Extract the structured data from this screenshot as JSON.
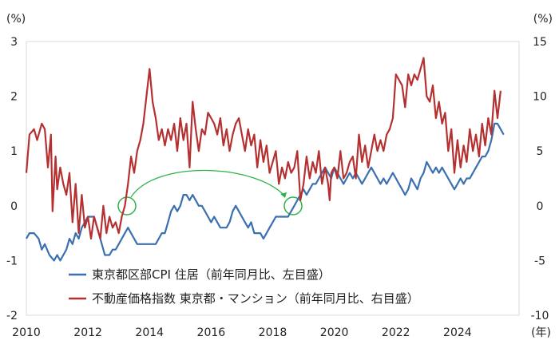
{
  "chart_data": {
    "type": "line",
    "left_unit": "(%)",
    "right_unit": "(%)",
    "x_unit": "(年)",
    "x_ticks": [
      "2010",
      "2012",
      "2014",
      "2016",
      "2018",
      "2020",
      "2022",
      "2024"
    ],
    "x_range": [
      2010,
      2026
    ],
    "left_ticks": [
      "3",
      "2",
      "1",
      "0",
      "-1",
      "-2"
    ],
    "right_ticks": [
      "15",
      "10",
      "5",
      "0",
      "-5",
      "-10"
    ],
    "left_range": [
      -2,
      3
    ],
    "right_range": [
      -10,
      15
    ],
    "grid": false,
    "legend_position": "bottom-left",
    "series": [
      {
        "name": "東京都区部CPI 住居（前年同月比、左目盛）",
        "axis": "left",
        "color": "#3a6fb0",
        "points": [
          [
            2010.0,
            -0.6
          ],
          [
            2010.1,
            -0.5
          ],
          [
            2010.25,
            -0.5
          ],
          [
            2010.4,
            -0.6
          ],
          [
            2010.5,
            -0.8
          ],
          [
            2010.6,
            -0.7
          ],
          [
            2010.75,
            -0.9
          ],
          [
            2010.9,
            -1.0
          ],
          [
            2011.0,
            -0.9
          ],
          [
            2011.1,
            -1.0
          ],
          [
            2011.2,
            -0.9
          ],
          [
            2011.3,
            -0.8
          ],
          [
            2011.4,
            -0.6
          ],
          [
            2011.5,
            -0.7
          ],
          [
            2011.6,
            -0.5
          ],
          [
            2011.7,
            -0.6
          ],
          [
            2011.8,
            -0.4
          ],
          [
            2011.9,
            -0.3
          ],
          [
            2012.0,
            -0.2
          ],
          [
            2012.1,
            -0.2
          ],
          [
            2012.2,
            -0.2
          ],
          [
            2012.3,
            -0.4
          ],
          [
            2012.45,
            -0.7
          ],
          [
            2012.55,
            -0.9
          ],
          [
            2012.7,
            -0.9
          ],
          [
            2012.8,
            -0.8
          ],
          [
            2012.9,
            -0.8
          ],
          [
            2013.0,
            -0.7
          ],
          [
            2013.1,
            -0.6
          ],
          [
            2013.2,
            -0.5
          ],
          [
            2013.3,
            -0.4
          ],
          [
            2013.4,
            -0.5
          ],
          [
            2013.5,
            -0.6
          ],
          [
            2013.6,
            -0.7
          ],
          [
            2013.8,
            -0.7
          ],
          [
            2014.0,
            -0.7
          ],
          [
            2014.2,
            -0.7
          ],
          [
            2014.3,
            -0.6
          ],
          [
            2014.4,
            -0.5
          ],
          [
            2014.5,
            -0.5
          ],
          [
            2014.6,
            -0.3
          ],
          [
            2014.7,
            -0.1
          ],
          [
            2014.8,
            0.0
          ],
          [
            2014.9,
            -0.1
          ],
          [
            2015.0,
            0.0
          ],
          [
            2015.1,
            0.2
          ],
          [
            2015.2,
            0.2
          ],
          [
            2015.3,
            0.1
          ],
          [
            2015.4,
            0.2
          ],
          [
            2015.5,
            0.1
          ],
          [
            2015.6,
            0.0
          ],
          [
            2015.7,
            0.0
          ],
          [
            2015.8,
            -0.1
          ],
          [
            2015.9,
            -0.2
          ],
          [
            2016.0,
            -0.3
          ],
          [
            2016.1,
            -0.2
          ],
          [
            2016.2,
            -0.3
          ],
          [
            2016.3,
            -0.4
          ],
          [
            2016.4,
            -0.4
          ],
          [
            2016.5,
            -0.4
          ],
          [
            2016.6,
            -0.3
          ],
          [
            2016.7,
            -0.1
          ],
          [
            2016.8,
            0.0
          ],
          [
            2016.9,
            -0.1
          ],
          [
            2017.0,
            -0.2
          ],
          [
            2017.1,
            -0.3
          ],
          [
            2017.2,
            -0.4
          ],
          [
            2017.3,
            -0.3
          ],
          [
            2017.4,
            -0.5
          ],
          [
            2017.6,
            -0.5
          ],
          [
            2017.7,
            -0.6
          ],
          [
            2017.8,
            -0.5
          ],
          [
            2017.9,
            -0.4
          ],
          [
            2018.0,
            -0.3
          ],
          [
            2018.1,
            -0.2
          ],
          [
            2018.3,
            -0.2
          ],
          [
            2018.5,
            -0.2
          ],
          [
            2018.6,
            -0.1
          ],
          [
            2018.7,
            0.0
          ],
          [
            2018.8,
            0.1
          ],
          [
            2018.9,
            0.2
          ],
          [
            2019.0,
            0.3
          ],
          [
            2019.1,
            0.2
          ],
          [
            2019.2,
            0.3
          ],
          [
            2019.3,
            0.4
          ],
          [
            2019.4,
            0.4
          ],
          [
            2019.5,
            0.5
          ],
          [
            2019.6,
            0.6
          ],
          [
            2019.7,
            0.7
          ],
          [
            2019.8,
            0.6
          ],
          [
            2019.9,
            0.5
          ],
          [
            2020.0,
            0.7
          ],
          [
            2020.1,
            0.6
          ],
          [
            2020.2,
            0.5
          ],
          [
            2020.3,
            0.4
          ],
          [
            2020.4,
            0.5
          ],
          [
            2020.5,
            0.6
          ],
          [
            2020.6,
            0.5
          ],
          [
            2020.7,
            0.6
          ],
          [
            2020.8,
            0.5
          ],
          [
            2020.9,
            0.4
          ],
          [
            2021.0,
            0.5
          ],
          [
            2021.1,
            0.6
          ],
          [
            2021.2,
            0.7
          ],
          [
            2021.3,
            0.6
          ],
          [
            2021.4,
            0.5
          ],
          [
            2021.5,
            0.4
          ],
          [
            2021.6,
            0.5
          ],
          [
            2021.7,
            0.4
          ],
          [
            2021.8,
            0.5
          ],
          [
            2021.9,
            0.6
          ],
          [
            2022.0,
            0.5
          ],
          [
            2022.1,
            0.4
          ],
          [
            2022.2,
            0.3
          ],
          [
            2022.3,
            0.2
          ],
          [
            2022.4,
            0.3
          ],
          [
            2022.5,
            0.5
          ],
          [
            2022.6,
            0.4
          ],
          [
            2022.7,
            0.3
          ],
          [
            2022.8,
            0.5
          ],
          [
            2022.9,
            0.6
          ],
          [
            2023.0,
            0.8
          ],
          [
            2023.1,
            0.7
          ],
          [
            2023.2,
            0.6
          ],
          [
            2023.3,
            0.7
          ],
          [
            2023.4,
            0.6
          ],
          [
            2023.5,
            0.7
          ],
          [
            2023.6,
            0.6
          ],
          [
            2023.7,
            0.5
          ],
          [
            2023.8,
            0.4
          ],
          [
            2023.9,
            0.3
          ],
          [
            2024.0,
            0.4
          ],
          [
            2024.1,
            0.5
          ],
          [
            2024.2,
            0.4
          ],
          [
            2024.3,
            0.5
          ],
          [
            2024.4,
            0.5
          ],
          [
            2024.5,
            0.6
          ],
          [
            2024.6,
            0.7
          ],
          [
            2024.7,
            0.8
          ],
          [
            2024.8,
            0.9
          ],
          [
            2024.9,
            0.9
          ],
          [
            2025.0,
            1.0
          ],
          [
            2025.1,
            1.2
          ],
          [
            2025.2,
            1.5
          ],
          [
            2025.3,
            1.5
          ],
          [
            2025.4,
            1.4
          ],
          [
            2025.5,
            1.3
          ]
        ]
      },
      {
        "name": "不動産価格指数 東京都・マンション（前年同月比、右目盛）",
        "axis": "right",
        "color": "#b53031",
        "points": [
          [
            2010.0,
            3.0
          ],
          [
            2010.1,
            6.5
          ],
          [
            2010.25,
            7.0
          ],
          [
            2010.35,
            6.0
          ],
          [
            2010.5,
            7.5
          ],
          [
            2010.6,
            7.0
          ],
          [
            2010.7,
            3.5
          ],
          [
            2010.8,
            6.5
          ],
          [
            2010.85,
            -0.5
          ],
          [
            2010.95,
            4.5
          ],
          [
            2011.0,
            1.5
          ],
          [
            2011.1,
            3.5
          ],
          [
            2011.2,
            2.0
          ],
          [
            2011.3,
            1.0
          ],
          [
            2011.4,
            3.0
          ],
          [
            2011.5,
            -1.5
          ],
          [
            2011.6,
            2.0
          ],
          [
            2011.7,
            -2.5
          ],
          [
            2011.8,
            1.0
          ],
          [
            2011.9,
            -2.0
          ],
          [
            2012.0,
            -1.0
          ],
          [
            2012.1,
            -3.0
          ],
          [
            2012.2,
            -1.0
          ],
          [
            2012.3,
            -2.0
          ],
          [
            2012.4,
            -3.0
          ],
          [
            2012.5,
            0.0
          ],
          [
            2012.6,
            -2.5
          ],
          [
            2012.7,
            -1.0
          ],
          [
            2012.8,
            -2.0
          ],
          [
            2012.9,
            -1.5
          ],
          [
            2013.0,
            -2.5
          ],
          [
            2013.1,
            -1.0
          ],
          [
            2013.2,
            0.0
          ],
          [
            2013.3,
            2.0
          ],
          [
            2013.4,
            4.5
          ],
          [
            2013.5,
            3.0
          ],
          [
            2013.6,
            5.0
          ],
          [
            2013.7,
            6.0
          ],
          [
            2013.8,
            7.5
          ],
          [
            2013.9,
            10.0
          ],
          [
            2014.0,
            12.5
          ],
          [
            2014.1,
            9.5
          ],
          [
            2014.2,
            8.0
          ],
          [
            2014.3,
            6.0
          ],
          [
            2014.4,
            7.0
          ],
          [
            2014.5,
            5.5
          ],
          [
            2014.6,
            7.0
          ],
          [
            2014.7,
            6.0
          ],
          [
            2014.8,
            7.5
          ],
          [
            2014.9,
            5.0
          ],
          [
            2015.0,
            8.0
          ],
          [
            2015.1,
            6.0
          ],
          [
            2015.2,
            7.5
          ],
          [
            2015.3,
            3.5
          ],
          [
            2015.4,
            9.5
          ],
          [
            2015.5,
            7.0
          ],
          [
            2015.6,
            5.0
          ],
          [
            2015.7,
            7.0
          ],
          [
            2015.8,
            6.5
          ],
          [
            2015.9,
            8.5
          ],
          [
            2016.0,
            8.0
          ],
          [
            2016.1,
            7.5
          ],
          [
            2016.2,
            6.5
          ],
          [
            2016.3,
            8.0
          ],
          [
            2016.4,
            5.5
          ],
          [
            2016.5,
            7.0
          ],
          [
            2016.6,
            5.0
          ],
          [
            2016.7,
            6.5
          ],
          [
            2016.8,
            7.5
          ],
          [
            2016.9,
            8.0
          ],
          [
            2017.0,
            6.5
          ],
          [
            2017.1,
            5.0
          ],
          [
            2017.2,
            7.0
          ],
          [
            2017.3,
            5.5
          ],
          [
            2017.4,
            6.5
          ],
          [
            2017.5,
            3.5
          ],
          [
            2017.6,
            6.0
          ],
          [
            2017.7,
            4.0
          ],
          [
            2017.8,
            5.5
          ],
          [
            2017.9,
            3.0
          ],
          [
            2018.0,
            4.0
          ],
          [
            2018.1,
            5.0
          ],
          [
            2018.2,
            2.0
          ],
          [
            2018.3,
            3.5
          ],
          [
            2018.4,
            2.5
          ],
          [
            2018.5,
            4.0
          ],
          [
            2018.6,
            3.0
          ],
          [
            2018.7,
            3.5
          ],
          [
            2018.8,
            5.0
          ],
          [
            2018.9,
            0.5
          ],
          [
            2019.0,
            2.0
          ],
          [
            2019.1,
            4.5
          ],
          [
            2019.2,
            2.5
          ],
          [
            2019.3,
            4.0
          ],
          [
            2019.4,
            3.0
          ],
          [
            2019.5,
            5.0
          ],
          [
            2019.6,
            2.0
          ],
          [
            2019.7,
            3.5
          ],
          [
            2019.8,
            2.0
          ],
          [
            2019.85,
            0.5
          ],
          [
            2019.9,
            3.0
          ],
          [
            2020.0,
            3.5
          ],
          [
            2020.1,
            2.5
          ],
          [
            2020.2,
            5.0
          ],
          [
            2020.3,
            2.5
          ],
          [
            2020.4,
            3.0
          ],
          [
            2020.5,
            4.0
          ],
          [
            2020.6,
            4.5
          ],
          [
            2020.7,
            2.5
          ],
          [
            2020.8,
            6.5
          ],
          [
            2020.9,
            4.0
          ],
          [
            2021.0,
            5.5
          ],
          [
            2021.1,
            3.5
          ],
          [
            2021.2,
            5.0
          ],
          [
            2021.3,
            6.5
          ],
          [
            2021.4,
            5.0
          ],
          [
            2021.5,
            6.0
          ],
          [
            2021.6,
            5.0
          ],
          [
            2021.7,
            6.5
          ],
          [
            2021.8,
            7.0
          ],
          [
            2021.9,
            8.0
          ],
          [
            2022.0,
            12.0
          ],
          [
            2022.1,
            11.5
          ],
          [
            2022.2,
            11.0
          ],
          [
            2022.3,
            9.0
          ],
          [
            2022.4,
            12.0
          ],
          [
            2022.5,
            11.0
          ],
          [
            2022.6,
            12.0
          ],
          [
            2022.7,
            11.5
          ],
          [
            2022.8,
            12.5
          ],
          [
            2022.9,
            13.5
          ],
          [
            2023.0,
            10.0
          ],
          [
            2023.1,
            9.5
          ],
          [
            2023.2,
            11.0
          ],
          [
            2023.3,
            8.0
          ],
          [
            2023.4,
            9.5
          ],
          [
            2023.5,
            7.5
          ],
          [
            2023.6,
            8.5
          ],
          [
            2023.7,
            5.0
          ],
          [
            2023.8,
            7.0
          ],
          [
            2023.9,
            3.0
          ],
          [
            2024.0,
            6.0
          ],
          [
            2024.1,
            3.5
          ],
          [
            2024.2,
            5.5
          ],
          [
            2024.3,
            4.0
          ],
          [
            2024.4,
            7.0
          ],
          [
            2024.5,
            5.0
          ],
          [
            2024.6,
            6.5
          ],
          [
            2024.7,
            4.5
          ],
          [
            2024.8,
            7.5
          ],
          [
            2024.9,
            5.5
          ],
          [
            2025.0,
            8.0
          ],
          [
            2025.1,
            6.5
          ],
          [
            2025.2,
            10.5
          ],
          [
            2025.3,
            8.0
          ],
          [
            2025.4,
            10.5
          ]
        ]
      }
    ]
  }
}
